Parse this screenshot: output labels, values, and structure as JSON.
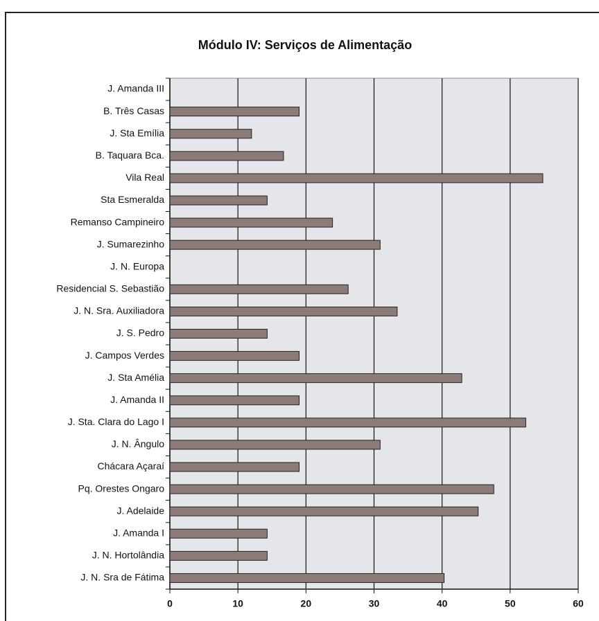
{
  "chart_data": {
    "type": "bar",
    "orientation": "horizontal",
    "title": "Módulo IV: Serviços de Alimentação",
    "categories": [
      "J. Amanda III",
      "B. Três Casas",
      "J. Sta Emília",
      "B. Taquara Bca.",
      "Vila Real",
      "Sta Esmeralda",
      "Remanso Campineiro",
      "J. Sumarezinho",
      "J. N. Europa",
      "Residencial S. Sebastião",
      "J. N. Sra. Auxiliadora",
      "J. S. Pedro",
      "J. Campos Verdes",
      "J. Sta Amélia",
      "J. Amanda II",
      "J. Sta. Clara do Lago I",
      "J. N. Ângulo",
      "Chácara Açaraí",
      "Pq. Orestes Ongaro",
      "J. Adelaide",
      "J. Amanda I",
      "J. N. Hortolândia",
      "J. N. Sra de Fátima"
    ],
    "values": [
      0,
      19,
      12,
      16.7,
      54.8,
      14.3,
      23.9,
      30.9,
      0,
      26.2,
      33.4,
      14.3,
      19,
      42.9,
      19,
      52.3,
      30.9,
      19,
      47.6,
      45.3,
      14.3,
      14.3,
      40.3
    ],
    "color": "#8c7b76",
    "xlim": [
      0,
      60
    ],
    "xticks": [
      0,
      10,
      20,
      30,
      40,
      50,
      60
    ],
    "grid": true
  }
}
